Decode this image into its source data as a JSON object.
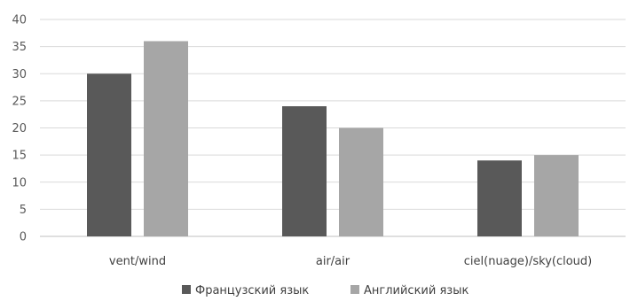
{
  "chart_data": {
    "type": "bar",
    "categories": [
      "vent/wind",
      "air/air",
      "ciel(nuage)/sky(cloud)"
    ],
    "series": [
      {
        "name": "Французский язык",
        "values": [
          30,
          24,
          14
        ],
        "color": "#595959"
      },
      {
        "name": "Английский язык",
        "values": [
          36,
          20,
          15
        ],
        "color": "#a6a6a6"
      }
    ],
    "yticks": [
      "0",
      "5",
      "10",
      "15",
      "20",
      "25",
      "30",
      "35",
      "40"
    ],
    "ylim": [
      0,
      40
    ],
    "grid": true,
    "legend_position": "bottom"
  }
}
